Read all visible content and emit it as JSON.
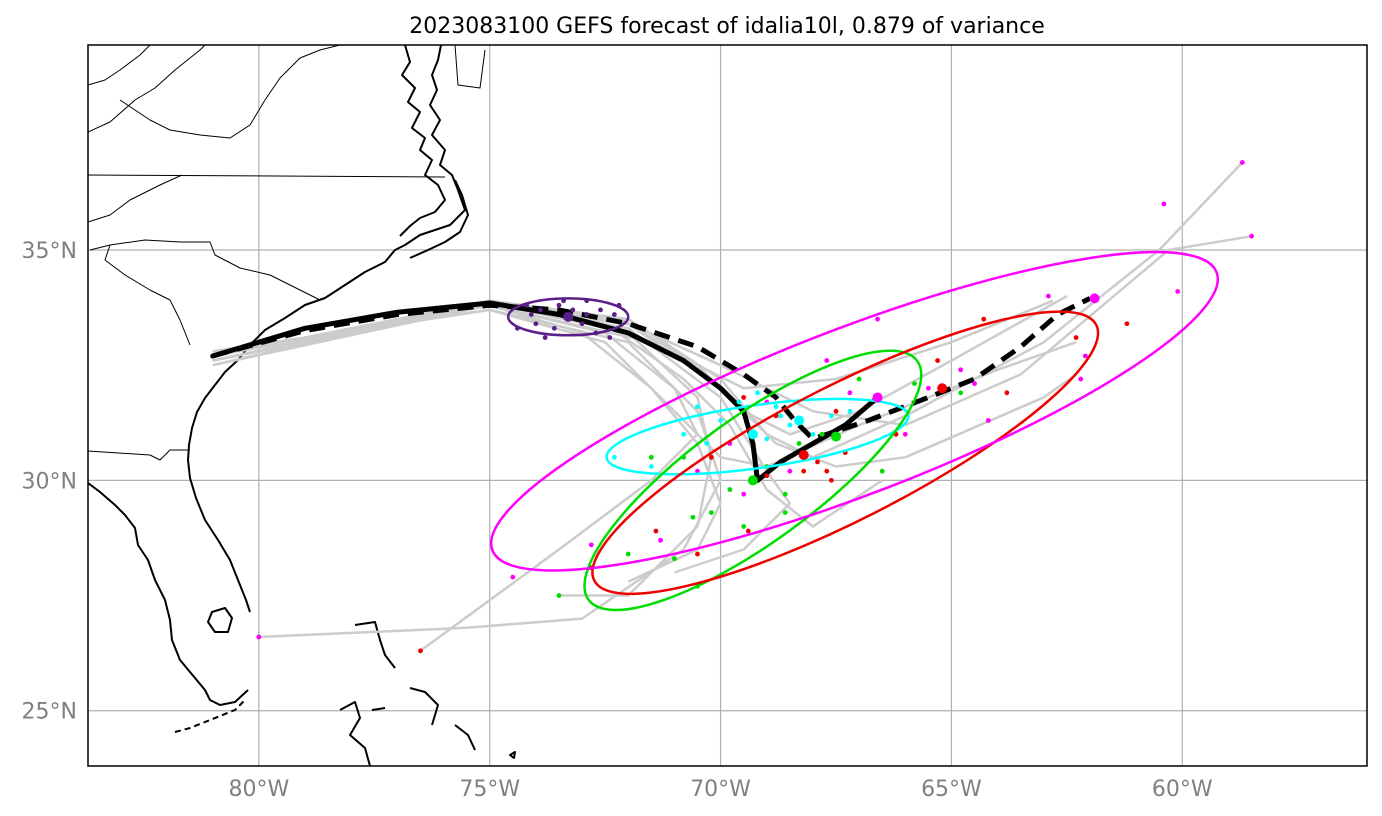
{
  "title": "2023083100 GEFS forecast of idalia10l, 0.879 of variance",
  "map": {
    "lon_range": [
      -83.7,
      -56.0
    ],
    "lat_range": [
      23.8,
      39.45
    ],
    "lon_ticks": [
      {
        "value": -80,
        "label": "80°W"
      },
      {
        "value": -75,
        "label": "75°W"
      },
      {
        "value": -70,
        "label": "70°W"
      },
      {
        "value": -65,
        "label": "65°W"
      },
      {
        "value": -60,
        "label": "60°W"
      }
    ],
    "lat_ticks": [
      {
        "value": 25,
        "label": "25°N"
      },
      {
        "value": 30,
        "label": "30°N"
      },
      {
        "value": 35,
        "label": "35°N"
      }
    ],
    "grid": true
  },
  "colors": {
    "ensemble": "#cccccc",
    "mean_track": "#000000",
    "grid": "#b0b0b0",
    "coast": "#000000",
    "purple": "#5b1f8a",
    "cyan": "#00ffff",
    "green": "#00dd00",
    "red": "#ee0000",
    "magenta": "#ff00ff"
  },
  "mean_track_solid": [
    [
      -81.0,
      32.7
    ],
    [
      -79.0,
      33.3
    ],
    [
      -77.0,
      33.65
    ],
    [
      -75.0,
      33.85
    ],
    [
      -73.5,
      33.6
    ],
    [
      -72.0,
      33.2
    ],
    [
      -70.8,
      32.6
    ],
    [
      -70.0,
      32.0
    ],
    [
      -69.5,
      31.5
    ],
    [
      -69.3,
      30.8
    ],
    [
      -69.2,
      30.0
    ],
    [
      -68.7,
      30.4
    ],
    [
      -68.0,
      30.8
    ],
    [
      -67.3,
      31.2
    ],
    [
      -66.6,
      31.8
    ]
  ],
  "mean_track_dashed": [
    [
      -81.0,
      32.7
    ],
    [
      -79.0,
      33.25
    ],
    [
      -77.0,
      33.6
    ],
    [
      -75.0,
      33.8
    ],
    [
      -73.5,
      33.7
    ],
    [
      -72.0,
      33.4
    ],
    [
      -70.5,
      32.9
    ],
    [
      -69.5,
      32.3
    ],
    [
      -68.8,
      31.8
    ],
    [
      -68.4,
      31.3
    ],
    [
      -68.0,
      30.9
    ],
    [
      -66.8,
      31.3
    ],
    [
      -65.5,
      31.8
    ],
    [
      -64.5,
      32.2
    ],
    [
      -63.5,
      32.9
    ],
    [
      -62.7,
      33.6
    ],
    [
      -62.0,
      33.95
    ]
  ],
  "ensemble_members": [
    [
      [
        -81,
        32.6
      ],
      [
        -75,
        33.9
      ],
      [
        -72,
        33.5
      ],
      [
        -70,
        32.2
      ],
      [
        -69,
        31.0
      ],
      [
        -68,
        30.5
      ],
      [
        -66,
        31.4
      ],
      [
        -63,
        33.0
      ],
      [
        -60.5,
        35.0
      ],
      [
        -58.7,
        36.9
      ]
    ],
    [
      [
        -81,
        32.8
      ],
      [
        -75,
        33.7
      ],
      [
        -72.5,
        33.0
      ],
      [
        -71,
        31.5
      ],
      [
        -70,
        30.5
      ],
      [
        -69,
        30.3
      ],
      [
        -67,
        31.2
      ],
      [
        -64,
        32.4
      ],
      [
        -62.3,
        33.0
      ]
    ],
    [
      [
        -81,
        32.5
      ],
      [
        -75,
        33.8
      ],
      [
        -73,
        33.2
      ],
      [
        -71.5,
        32.0
      ],
      [
        -70.5,
        30.8
      ],
      [
        -70,
        29.5
      ],
      [
        -70.5,
        28.5
      ],
      [
        -72,
        27.8
      ]
    ],
    [
      [
        -81,
        32.7
      ],
      [
        -75,
        33.9
      ],
      [
        -72,
        33.4
      ],
      [
        -70.5,
        32.5
      ],
      [
        -69.5,
        31.5
      ],
      [
        -68.5,
        31.0
      ],
      [
        -67,
        31.5
      ],
      [
        -65,
        32.6
      ],
      [
        -62.5,
        34.0
      ]
    ],
    [
      [
        -81,
        32.6
      ],
      [
        -75,
        33.85
      ],
      [
        -72,
        33.3
      ],
      [
        -70,
        31.8
      ],
      [
        -69,
        30.2
      ],
      [
        -68.5,
        29.5
      ],
      [
        -69.5,
        28.5
      ],
      [
        -71,
        28.0
      ]
    ],
    [
      [
        -81,
        32.7
      ],
      [
        -75,
        33.8
      ],
      [
        -72.5,
        33.2
      ],
      [
        -71,
        32.0
      ],
      [
        -70.5,
        31.0
      ],
      [
        -71.5,
        30.0
      ],
      [
        -73.5,
        28.5
      ],
      [
        -76.5,
        26.3
      ]
    ],
    [
      [
        -81,
        32.5
      ],
      [
        -75,
        33.9
      ],
      [
        -72.2,
        33.5
      ],
      [
        -70,
        32.5
      ],
      [
        -68,
        31.5
      ],
      [
        -66,
        31.2
      ],
      [
        -63.5,
        32.3
      ],
      [
        -60.3,
        35.0
      ],
      [
        -58.5,
        35.3
      ]
    ],
    [
      [
        -81,
        32.8
      ],
      [
        -75,
        33.7
      ],
      [
        -72,
        33.0
      ],
      [
        -70.5,
        31.5
      ],
      [
        -70,
        30.0
      ],
      [
        -70.8,
        28.5
      ],
      [
        -73.0,
        27.0
      ],
      [
        -75.5,
        26.8
      ],
      [
        -80,
        26.6
      ]
    ],
    [
      [
        -81,
        32.6
      ],
      [
        -75,
        33.8
      ],
      [
        -72,
        33.4
      ],
      [
        -70,
        32.0
      ],
      [
        -68.8,
        30.8
      ],
      [
        -67.5,
        30.3
      ],
      [
        -66,
        30.5
      ],
      [
        -63,
        31.8
      ],
      [
        -62.3,
        32.3
      ]
    ],
    [
      [
        -81,
        32.7
      ],
      [
        -75,
        33.9
      ],
      [
        -72.5,
        33.4
      ],
      [
        -70.8,
        32.2
      ],
      [
        -69.8,
        31.2
      ],
      [
        -69.0,
        29.8
      ],
      [
        -68.0,
        29.0
      ],
      [
        -66.5,
        30.0
      ]
    ],
    [
      [
        -81,
        32.6
      ],
      [
        -75,
        33.8
      ],
      [
        -71.5,
        33.0
      ],
      [
        -69.5,
        32.0
      ],
      [
        -67.5,
        32.2
      ],
      [
        -65.0,
        33.0
      ],
      [
        -62.8,
        33.9
      ]
    ],
    [
      [
        -81,
        32.7
      ],
      [
        -75,
        33.85
      ],
      [
        -72,
        33.2
      ],
      [
        -70.5,
        31.8
      ],
      [
        -70.2,
        30.5
      ],
      [
        -70.5,
        29.0
      ],
      [
        -72.0,
        27.5
      ],
      [
        -73.5,
        27.5
      ]
    ]
  ],
  "ellipses": [
    {
      "color": "purple",
      "lon": -73.3,
      "lat": 33.55,
      "rx": 1.3,
      "ry": 0.4,
      "angle": 0
    },
    {
      "color": "cyan",
      "lon": -69.2,
      "lat": 30.95,
      "rx": 3.3,
      "ry": 0.68,
      "angle": 8
    },
    {
      "color": "green",
      "lon": -69.3,
      "lat": 30.0,
      "rx": 4.4,
      "ry": 1.35,
      "angle": 36
    },
    {
      "color": "red",
      "lon": -67.3,
      "lat": 30.6,
      "rx": 6.1,
      "ry": 1.45,
      "angle": 27
    },
    {
      "color": "magenta",
      "lon": -67.1,
      "lat": 31.5,
      "rx": 8.4,
      "ry": 1.8,
      "angle": 21
    }
  ],
  "centroids": [
    {
      "color": "purple",
      "lon": -73.3,
      "lat": 33.55
    },
    {
      "color": "cyan",
      "lon": -69.3,
      "lat": 31.0
    },
    {
      "color": "green",
      "lon": -69.3,
      "lat": 30.0
    },
    {
      "color": "red",
      "lon": -68.2,
      "lat": 30.55
    },
    {
      "color": "green",
      "lon": -67.5,
      "lat": 30.95
    },
    {
      "color": "cyan",
      "lon": -68.3,
      "lat": 31.3
    },
    {
      "color": "magenta",
      "lon": -66.6,
      "lat": 31.8
    },
    {
      "color": "red",
      "lon": -65.2,
      "lat": 32.0
    },
    {
      "color": "magenta",
      "lon": -61.9,
      "lat": 33.95
    }
  ],
  "ensemble_points": [
    {
      "color": "purple",
      "pts": [
        [
          -74.2,
          33.8
        ],
        [
          -73.9,
          33.7
        ],
        [
          -73.5,
          33.8
        ],
        [
          -73.2,
          33.7
        ],
        [
          -72.9,
          33.6
        ],
        [
          -72.6,
          33.7
        ],
        [
          -72.3,
          33.6
        ],
        [
          -74.0,
          33.4
        ],
        [
          -73.6,
          33.3
        ],
        [
          -73.0,
          33.4
        ],
        [
          -72.7,
          33.2
        ],
        [
          -74.4,
          33.3
        ],
        [
          -73.8,
          33.1
        ],
        [
          -72.4,
          33.1
        ],
        [
          -73.4,
          33.9
        ],
        [
          -72.2,
          33.8
        ],
        [
          -72.9,
          33.9
        ],
        [
          -74.1,
          33.6
        ]
      ]
    },
    {
      "color": "cyan",
      "pts": [
        [
          -70.5,
          31.6
        ],
        [
          -70.0,
          31.3
        ],
        [
          -69.6,
          31.7
        ],
        [
          -69.2,
          31.9
        ],
        [
          -68.8,
          31.6
        ],
        [
          -68.5,
          31.2
        ],
        [
          -68.0,
          31.0
        ],
        [
          -67.6,
          31.4
        ],
        [
          -67.2,
          31.5
        ],
        [
          -70.8,
          31.0
        ],
        [
          -71.5,
          30.3
        ],
        [
          -72.3,
          30.5
        ],
        [
          -69.0,
          30.9
        ],
        [
          -68.7,
          31.4
        ],
        [
          -70.3,
          30.8
        ]
      ]
    },
    {
      "color": "green",
      "pts": [
        [
          -70.8,
          30.5
        ],
        [
          -70.2,
          29.3
        ],
        [
          -69.8,
          29.8
        ],
        [
          -69.0,
          30.3
        ],
        [
          -68.6,
          29.7
        ],
        [
          -68.3,
          30.8
        ],
        [
          -67.8,
          31.0
        ],
        [
          -67.0,
          32.2
        ],
        [
          -66.5,
          30.2
        ],
        [
          -65.8,
          32.1
        ],
        [
          -64.8,
          31.9
        ],
        [
          -71.0,
          28.3
        ],
        [
          -72.0,
          28.4
        ],
        [
          -70.5,
          27.7
        ],
        [
          -73.5,
          27.5
        ],
        [
          -68.6,
          29.3
        ],
        [
          -69.5,
          29.0
        ],
        [
          -71.5,
          30.5
        ],
        [
          -70.6,
          29.2
        ]
      ]
    },
    {
      "color": "red",
      "pts": [
        [
          -69.5,
          31.8
        ],
        [
          -68.8,
          31.4
        ],
        [
          -68.2,
          30.2
        ],
        [
          -67.9,
          30.4
        ],
        [
          -67.7,
          30.2
        ],
        [
          -67.6,
          30.0
        ],
        [
          -67.3,
          30.6
        ],
        [
          -66.2,
          31.0
        ],
        [
          -65.3,
          32.6
        ],
        [
          -64.3,
          33.5
        ],
        [
          -63.8,
          31.9
        ],
        [
          -62.3,
          33.1
        ],
        [
          -61.2,
          33.4
        ],
        [
          -69.4,
          28.9
        ],
        [
          -70.5,
          28.4
        ],
        [
          -71.4,
          28.9
        ],
        [
          -72.8,
          28.1
        ],
        [
          -76.5,
          26.3
        ],
        [
          -69.0,
          30.1
        ],
        [
          -67.5,
          31.5
        ],
        [
          -70.2,
          30.5
        ]
      ]
    },
    {
      "color": "magenta",
      "pts": [
        [
          -69.8,
          30.8
        ],
        [
          -68.5,
          30.2
        ],
        [
          -67.7,
          32.6
        ],
        [
          -66.0,
          31.0
        ],
        [
          -65.5,
          32.0
        ],
        [
          -64.8,
          32.4
        ],
        [
          -64.5,
          32.1
        ],
        [
          -62.9,
          34.0
        ],
        [
          -62.1,
          32.7
        ],
        [
          -62.2,
          32.2
        ],
        [
          -60.1,
          34.1
        ],
        [
          -60.4,
          36.0
        ],
        [
          -58.7,
          36.9
        ],
        [
          -58.5,
          35.3
        ],
        [
          -66.6,
          33.5
        ],
        [
          -67.2,
          31.9
        ],
        [
          -69.0,
          31.7
        ],
        [
          -69.5,
          29.7
        ],
        [
          -70.5,
          30.2
        ],
        [
          -71.3,
          28.7
        ],
        [
          -72.8,
          28.6
        ],
        [
          -74.5,
          27.9
        ],
        [
          -80.0,
          26.6
        ],
        [
          -64.2,
          31.3
        ]
      ]
    }
  ]
}
